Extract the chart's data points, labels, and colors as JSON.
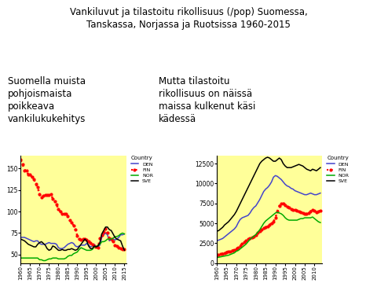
{
  "title": "Vankiluvut ja tilastoitu rikollisuus (/pop) Suomessa,\nTanskassa, Norjassa ja Ruotsissa 1960-2015",
  "title_fontsize": 8.5,
  "left_annotation": "Suomella muista\npohjoismaista\npoikkeava\nvankilukukehitys",
  "right_annotation": "Mutta tilastoitu\nrikollisuus on näissä\nmaissa kulkenut käsi\nkädessä",
  "annotation_fontsize": 8.5,
  "background_color": "#ffff99",
  "years_prison": [
    1960,
    1961,
    1962,
    1963,
    1964,
    1965,
    1966,
    1967,
    1968,
    1969,
    1970,
    1971,
    1972,
    1973,
    1974,
    1975,
    1976,
    1977,
    1978,
    1979,
    1980,
    1981,
    1982,
    1983,
    1984,
    1985,
    1986,
    1987,
    1988,
    1989,
    1990,
    1991,
    1992,
    1993,
    1994,
    1995,
    1996,
    1997,
    1998,
    1999,
    2000,
    2001,
    2002,
    2003,
    2004,
    2005,
    2006,
    2007,
    2008,
    2009,
    2010,
    2011,
    2012,
    2013,
    2014,
    2015
  ],
  "prison_DEN": [
    70,
    70,
    70,
    69,
    68,
    67,
    66,
    65,
    66,
    66,
    63,
    62,
    62,
    62,
    63,
    64,
    63,
    63,
    63,
    62,
    58,
    57,
    57,
    58,
    60,
    62,
    63,
    64,
    63,
    60,
    59,
    60,
    61,
    61,
    61,
    63,
    61,
    59,
    60,
    62,
    59,
    59,
    61,
    70,
    73,
    75,
    73,
    66,
    67,
    68,
    67,
    68,
    70,
    73,
    73,
    74
  ],
  "prison_FIN": [
    160,
    155,
    148,
    148,
    143,
    143,
    140,
    138,
    132,
    128,
    120,
    117,
    118,
    119,
    119,
    119,
    120,
    115,
    112,
    108,
    103,
    100,
    97,
    97,
    97,
    95,
    90,
    87,
    84,
    79,
    72,
    68,
    67,
    68,
    68,
    67,
    65,
    64,
    62,
    60,
    59,
    58,
    69,
    73,
    76,
    80,
    75,
    69,
    68,
    65,
    61,
    60,
    58,
    57,
    56,
    56
  ],
  "prison_NOR": [
    46,
    46,
    46,
    46,
    46,
    46,
    46,
    46,
    46,
    46,
    44,
    44,
    43,
    43,
    44,
    45,
    45,
    46,
    46,
    46,
    45,
    45,
    45,
    45,
    46,
    48,
    49,
    49,
    51,
    52,
    53,
    56,
    58,
    57,
    56,
    55,
    55,
    55,
    56,
    59,
    59,
    61,
    62,
    65,
    65,
    66,
    68,
    68,
    68,
    69,
    71,
    71,
    72,
    74,
    75,
    74
  ],
  "prison_SVE": [
    68,
    67,
    66,
    64,
    62,
    61,
    60,
    59,
    59,
    62,
    64,
    65,
    63,
    61,
    57,
    55,
    56,
    60,
    59,
    57,
    55,
    55,
    56,
    55,
    55,
    56,
    56,
    57,
    56,
    55,
    56,
    59,
    62,
    65,
    68,
    66,
    60,
    57,
    57,
    60,
    59,
    60,
    64,
    74,
    78,
    82,
    82,
    79,
    78,
    74,
    70,
    68,
    67,
    66,
    60,
    55
  ],
  "years_crime": [
    1960,
    1961,
    1962,
    1963,
    1964,
    1965,
    1966,
    1967,
    1968,
    1969,
    1970,
    1971,
    1972,
    1973,
    1974,
    1975,
    1976,
    1977,
    1978,
    1979,
    1980,
    1981,
    1982,
    1983,
    1984,
    1985,
    1986,
    1987,
    1988,
    1989,
    1990,
    1991,
    1992,
    1993,
    1994,
    1995,
    1996,
    1997,
    1998,
    1999,
    2000,
    2001,
    2002,
    2003,
    2004,
    2005,
    2006,
    2007,
    2008,
    2009,
    2010,
    2011,
    2012,
    2013
  ],
  "crime_DEN": [
    2800,
    2900,
    3000,
    3100,
    3300,
    3500,
    3700,
    3900,
    4100,
    4300,
    4600,
    5100,
    5500,
    5700,
    5800,
    5900,
    6000,
    6300,
    6700,
    7000,
    7200,
    7600,
    8000,
    8500,
    9000,
    9300,
    9500,
    9800,
    10200,
    10800,
    11000,
    10900,
    10700,
    10500,
    10200,
    9900,
    9700,
    9600,
    9400,
    9300,
    9100,
    9000,
    8900,
    8800,
    8700,
    8600,
    8600,
    8700,
    8800,
    8700,
    8600,
    8600,
    8700,
    8800
  ],
  "crime_FIN": [
    1000,
    1100,
    1200,
    1200,
    1300,
    1400,
    1500,
    1500,
    1600,
    1700,
    1800,
    2000,
    2200,
    2400,
    2600,
    2800,
    3000,
    3100,
    3200,
    3300,
    3500,
    3800,
    4000,
    4200,
    4400,
    4500,
    4600,
    4800,
    5000,
    5200,
    5700,
    6500,
    7200,
    7500,
    7500,
    7300,
    7100,
    7000,
    6800,
    6700,
    6700,
    6600,
    6500,
    6400,
    6300,
    6200,
    6200,
    6300,
    6500,
    6700,
    6600,
    6400,
    6500,
    6600
  ],
  "crime_NOR": [
    700,
    750,
    800,
    850,
    900,
    950,
    1000,
    1100,
    1200,
    1300,
    1500,
    1600,
    1800,
    2000,
    2200,
    2400,
    2700,
    3000,
    3200,
    3400,
    3600,
    3900,
    4200,
    4600,
    5000,
    5300,
    5500,
    5700,
    5900,
    6100,
    6300,
    6400,
    6300,
    6200,
    6000,
    5700,
    5500,
    5400,
    5400,
    5400,
    5400,
    5400,
    5500,
    5600,
    5600,
    5700,
    5700,
    5700,
    5700,
    5800,
    5600,
    5400,
    5200,
    5100
  ],
  "crime_SVE": [
    4000,
    4100,
    4300,
    4500,
    4800,
    5000,
    5200,
    5500,
    5800,
    6100,
    6500,
    7000,
    7500,
    8000,
    8500,
    9000,
    9500,
    10000,
    10500,
    11000,
    11500,
    12000,
    12500,
    12800,
    13000,
    13200,
    13300,
    13200,
    13000,
    12800,
    12800,
    13000,
    13200,
    13000,
    12500,
    12200,
    12000,
    12000,
    12000,
    12100,
    12200,
    12300,
    12400,
    12300,
    12200,
    12000,
    11800,
    11700,
    11600,
    11800,
    11700,
    11600,
    11800,
    12000
  ],
  "colors": {
    "DEN": "#4444cc",
    "FIN": "#ff0000",
    "NOR": "#00aa00",
    "SVE": "#000000"
  },
  "prison_ylim": [
    40,
    165
  ],
  "prison_yticks": [
    50,
    75,
    100,
    125,
    150
  ],
  "crime_ylim": [
    0,
    13500
  ],
  "crime_yticks": [
    0,
    2500,
    5000,
    7500,
    10000,
    12500
  ],
  "xtick_years_prison": [
    1960,
    1965,
    1970,
    1975,
    1980,
    1985,
    1990,
    1995,
    2000,
    2005,
    2010,
    2015
  ],
  "xtick_years_crime": [
    1960,
    1965,
    1970,
    1975,
    1980,
    1985,
    1990,
    1995,
    2000,
    2005,
    2010
  ]
}
